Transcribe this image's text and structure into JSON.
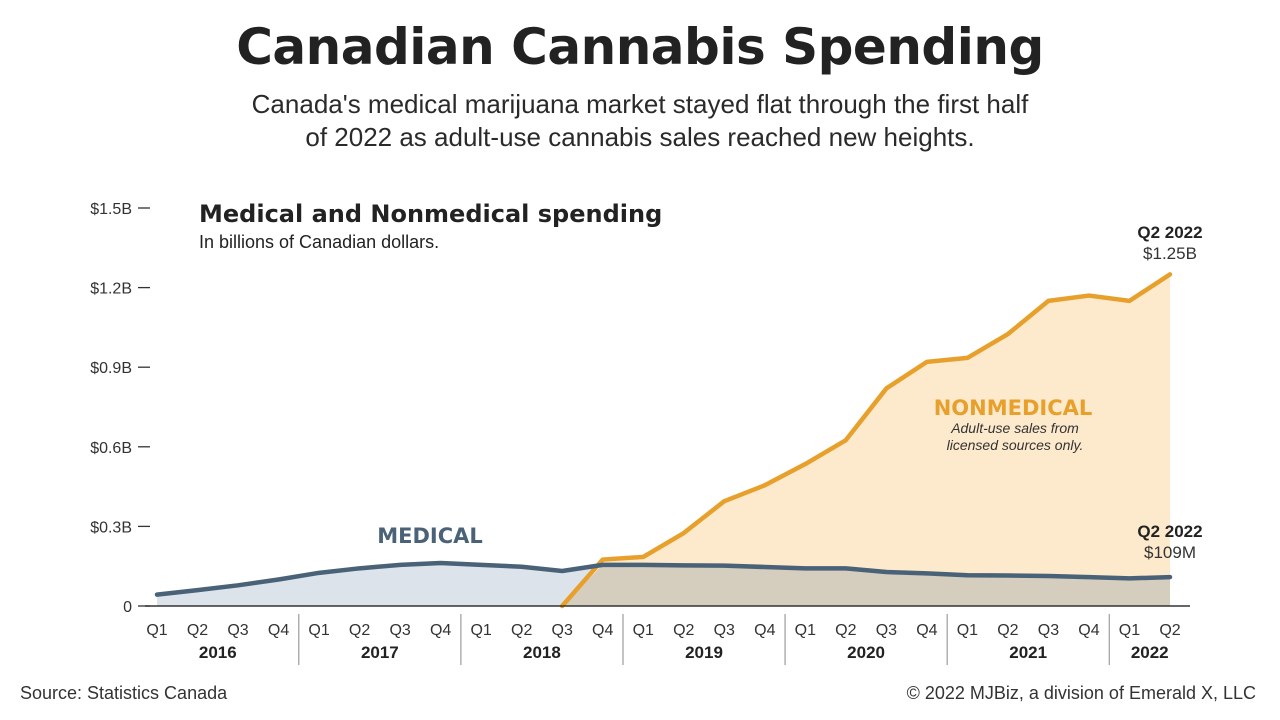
{
  "header": {
    "title": "Canadian Cannabis Spending",
    "subtitle_line1": "Canada's medical marijuana market stayed flat through the first half",
    "subtitle_line2": "of 2022 as adult-use cannabis sales reached new heights."
  },
  "footer": {
    "source": "Source: Statistics Canada",
    "copyright": "© 2022 MJBiz, a division of Emerald X, LLC"
  },
  "colors": {
    "medical_line": "#4a6278",
    "medical_fill": "#dde3ea",
    "nonmedical_line": "#e8a02c",
    "nonmedical_fill": "#fde9cc",
    "overlap_fill": "#d5cdbd"
  },
  "chart_data": {
    "type": "area",
    "title": "Medical and Nonmedical spending",
    "subtitle": "In billions of Canadian dollars.",
    "yticks": [
      "0",
      "$0.3B",
      "$0.6B",
      "$0.9B",
      "$1.2B",
      "$1.5B"
    ],
    "ylim": [
      0,
      1.5
    ],
    "quarters": [
      "Q1",
      "Q2",
      "Q3",
      "Q4",
      "Q1",
      "Q2",
      "Q3",
      "Q4",
      "Q1",
      "Q2",
      "Q3",
      "Q4",
      "Q1",
      "Q2",
      "Q3",
      "Q4",
      "Q1",
      "Q2",
      "Q3",
      "Q4",
      "Q1",
      "Q2",
      "Q3",
      "Q4",
      "Q1",
      "Q2"
    ],
    "years": [
      {
        "label": "2016",
        "quarters": 4
      },
      {
        "label": "2017",
        "quarters": 4
      },
      {
        "label": "2018",
        "quarters": 4
      },
      {
        "label": "2019",
        "quarters": 4
      },
      {
        "label": "2020",
        "quarters": 4
      },
      {
        "label": "2021",
        "quarters": 4
      },
      {
        "label": "2022",
        "quarters": 2
      }
    ],
    "series": [
      {
        "name": "MEDICAL",
        "values": [
          0.043,
          0.06,
          0.078,
          0.1,
          0.125,
          0.142,
          0.155,
          0.162,
          0.155,
          0.148,
          0.132,
          0.155,
          0.155,
          0.153,
          0.152,
          0.147,
          0.142,
          0.142,
          0.128,
          0.123,
          0.116,
          0.115,
          0.113,
          0.109,
          0.104,
          0.109
        ]
      },
      {
        "name": "NONMEDICAL",
        "note_line1": "Adult-use sales from",
        "note_line2": "licensed sources only.",
        "start_index": 10,
        "values": [
          null,
          null,
          null,
          null,
          null,
          null,
          null,
          null,
          null,
          null,
          0.0,
          0.175,
          0.185,
          0.275,
          0.395,
          0.455,
          0.535,
          0.625,
          0.82,
          0.92,
          0.935,
          1.025,
          1.15,
          1.17,
          1.15,
          1.25
        ]
      }
    ],
    "annotations": [
      {
        "period": "Q2 2022",
        "value": "$1.25B"
      },
      {
        "period": "Q2 2022",
        "value": "$109M"
      }
    ]
  }
}
